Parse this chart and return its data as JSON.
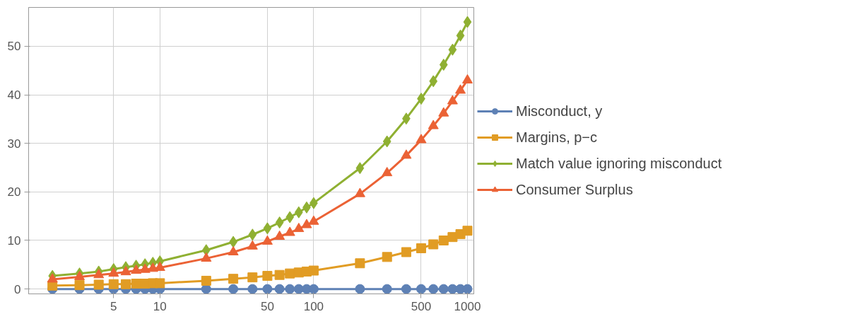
{
  "chart_data": {
    "type": "line",
    "log": "x",
    "grid": true,
    "legend": "right",
    "line_style": "solid",
    "x": [
      2,
      3,
      4,
      5,
      6,
      7,
      8,
      9,
      10,
      20,
      30,
      40,
      50,
      60,
      70,
      80,
      90,
      100,
      200,
      300,
      400,
      500,
      600,
      700,
      800,
      900,
      1000
    ],
    "xlim": [
      1.4,
      1100
    ],
    "xticks": [
      5,
      10,
      50,
      100,
      500,
      1000
    ],
    "ylim": [
      -1,
      58
    ],
    "yticks": [
      0,
      10,
      20,
      30,
      40,
      50
    ],
    "series": [
      {
        "name": "Misconduct, y",
        "color": "#5e81b5",
        "marker": "circle",
        "values": [
          0,
          0,
          0,
          0,
          0,
          0,
          0,
          0,
          0,
          0,
          0,
          0,
          0,
          0,
          0,
          0,
          0,
          0,
          0,
          0,
          0,
          0,
          0,
          0,
          0,
          0,
          0
        ]
      },
      {
        "name": "Margins, p−c",
        "color": "#e19c24",
        "marker": "square",
        "values": [
          0.7,
          0.8,
          0.9,
          1.0,
          1.0,
          1.1,
          1.1,
          1.2,
          1.2,
          1.7,
          2.1,
          2.4,
          2.7,
          2.9,
          3.2,
          3.4,
          3.6,
          3.8,
          5.3,
          6.6,
          7.6,
          8.4,
          9.2,
          10.0,
          10.7,
          11.3,
          12.0
        ]
      },
      {
        "name": "Match value ignoring misconduct",
        "color": "#8fb032",
        "marker": "diamond",
        "values": [
          2.7,
          3.2,
          3.6,
          4.1,
          4.5,
          4.8,
          5.1,
          5.4,
          5.7,
          8.0,
          9.7,
          11.2,
          12.5,
          13.7,
          14.8,
          15.8,
          16.8,
          17.7,
          24.9,
          30.4,
          35.1,
          39.2,
          42.8,
          46.2,
          49.3,
          52.2,
          55.0
        ]
      },
      {
        "name": "Consumer Surplus",
        "color": "#eb6235",
        "marker": "triangle",
        "values": [
          2.0,
          2.5,
          2.9,
          3.2,
          3.5,
          3.8,
          4.0,
          4.2,
          4.4,
          6.3,
          7.6,
          8.8,
          9.8,
          10.8,
          11.6,
          12.4,
          13.2,
          13.9,
          19.6,
          23.9,
          27.5,
          30.7,
          33.6,
          36.2,
          38.7,
          40.9,
          43.0
        ]
      }
    ]
  }
}
